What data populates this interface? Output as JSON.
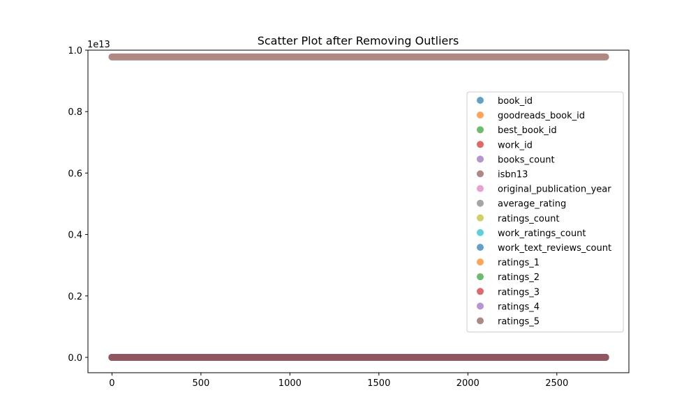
{
  "chart_data": {
    "type": "scatter",
    "title": "Scatter Plot after Removing Outliers",
    "xlabel": "",
    "ylabel": "",
    "y_offset_label": "1e13",
    "xlim": [
      -135,
      2905
    ],
    "ylim": [
      -0.05,
      1.0
    ],
    "y_scale_factor": 10000000000000.0,
    "x_ticks": [
      0,
      500,
      1000,
      1500,
      2000,
      2500
    ],
    "y_ticks": [
      0.0,
      0.2,
      0.4,
      0.6,
      0.8,
      1.0
    ],
    "y_tick_labels": [
      "0.0",
      "0.2",
      "0.4",
      "0.6",
      "0.8",
      "1.0"
    ],
    "x_range_points": [
      0,
      2774
    ],
    "grid": false,
    "legend_position": "right",
    "series": [
      {
        "name": "book_id",
        "color": "#1f77b4",
        "y_level": 0.0
      },
      {
        "name": "goodreads_book_id",
        "color": "#ff7f0e",
        "y_level": 0.0
      },
      {
        "name": "best_book_id",
        "color": "#2ca02c",
        "y_level": 0.0
      },
      {
        "name": "work_id",
        "color": "#d62728",
        "y_level": 0.0
      },
      {
        "name": "books_count",
        "color": "#9467bd",
        "y_level": 0.0
      },
      {
        "name": "isbn13",
        "color": "#8c564b",
        "y_level": 0.978
      },
      {
        "name": "original_publication_year",
        "color": "#e377c2",
        "y_level": 0.0
      },
      {
        "name": "average_rating",
        "color": "#7f7f7f",
        "y_level": 0.0
      },
      {
        "name": "ratings_count",
        "color": "#bcbd22",
        "y_level": 0.0
      },
      {
        "name": "work_ratings_count",
        "color": "#17becf",
        "y_level": 0.0
      },
      {
        "name": "work_text_reviews_count",
        "color": "#1f77b4",
        "y_level": 0.0
      },
      {
        "name": "ratings_1",
        "color": "#ff7f0e",
        "y_level": 0.0
      },
      {
        "name": "ratings_2",
        "color": "#2ca02c",
        "y_level": 0.0
      },
      {
        "name": "ratings_3",
        "color": "#d62728",
        "y_level": 0.0
      },
      {
        "name": "ratings_4",
        "color": "#9467bd",
        "y_level": 0.0
      },
      {
        "name": "ratings_5",
        "color": "#8c564b",
        "y_level": 0.0
      }
    ]
  }
}
